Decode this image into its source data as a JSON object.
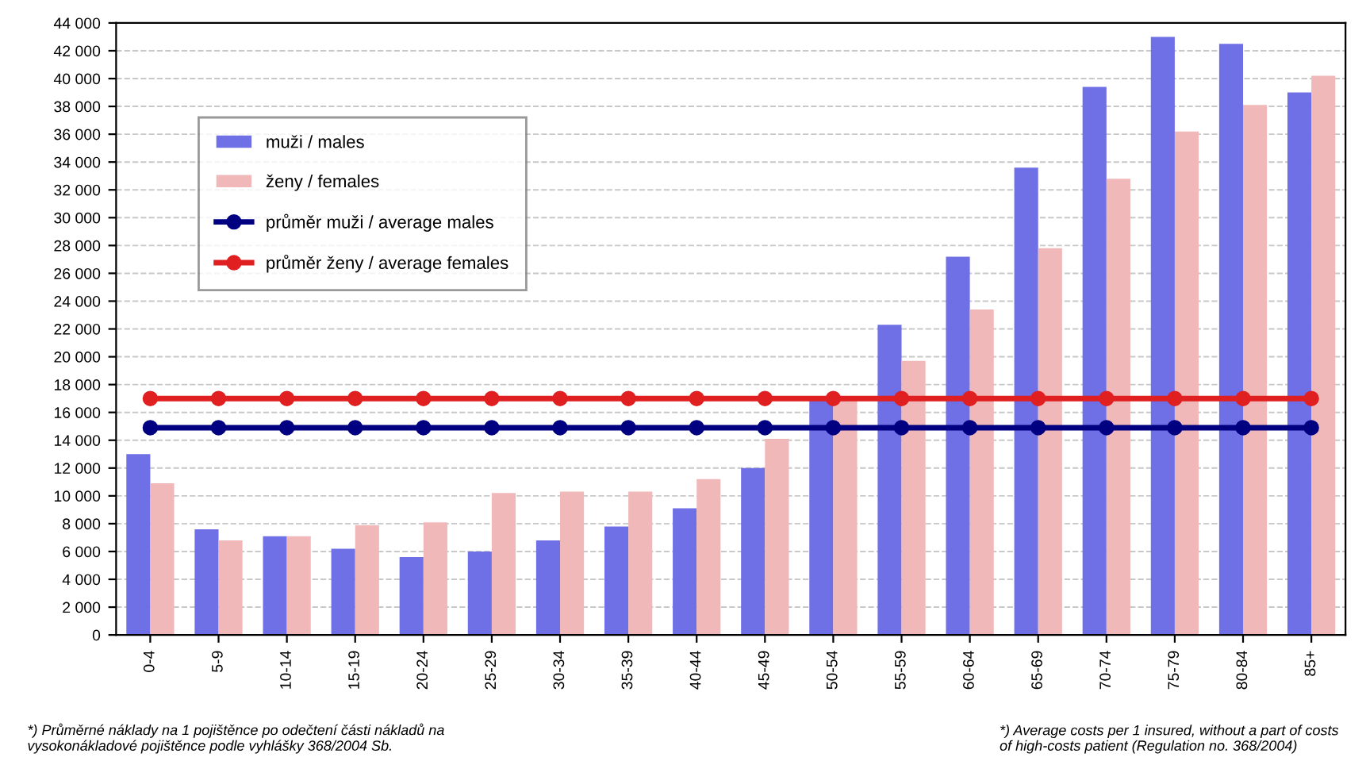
{
  "chart_data": {
    "type": "bar",
    "categories": [
      "0-4",
      "5-9",
      "10-14",
      "15-19",
      "20-24",
      "25-29",
      "30-34",
      "35-39",
      "40-44",
      "45-49",
      "50-54",
      "55-59",
      "60-64",
      "65-69",
      "70-74",
      "75-79",
      "80-84",
      "85+"
    ],
    "series": [
      {
        "name": "muži / males",
        "color": "#6f6fe6",
        "values": [
          13000,
          7600,
          7100,
          6200,
          5600,
          6000,
          6800,
          7800,
          9100,
          12000,
          17000,
          22300,
          27200,
          33600,
          39400,
          43000,
          42500,
          39000
        ]
      },
      {
        "name": "ženy / females",
        "color": "#f0b8b8",
        "values": [
          10900,
          6800,
          7100,
          7900,
          8100,
          10200,
          10300,
          10300,
          11200,
          14100,
          17100,
          19700,
          23400,
          27800,
          32800,
          36200,
          38100,
          40200
        ]
      },
      {
        "name": "průměr muži / average males",
        "type": "line",
        "color": "#000080",
        "values": [
          14900,
          14900,
          14900,
          14900,
          14900,
          14900,
          14900,
          14900,
          14900,
          14900,
          14900,
          14900,
          14900,
          14900,
          14900,
          14900,
          14900,
          14900
        ]
      },
      {
        "name": "průměr ženy / average females",
        "type": "line",
        "color": "#e02020",
        "values": [
          17000,
          17000,
          17000,
          17000,
          17000,
          17000,
          17000,
          17000,
          17000,
          17000,
          17000,
          17000,
          17000,
          17000,
          17000,
          17000,
          17000,
          17000
        ]
      }
    ],
    "ylim": [
      0,
      44000
    ],
    "yticks": [
      {
        "value": 0,
        "label": "0"
      },
      {
        "value": 2000,
        "label": "2 000"
      },
      {
        "value": 4000,
        "label": "4 000"
      },
      {
        "value": 6000,
        "label": "6 000"
      },
      {
        "value": 8000,
        "label": "8 000"
      },
      {
        "value": 10000,
        "label": "10 000"
      },
      {
        "value": 12000,
        "label": "12 000"
      },
      {
        "value": 14000,
        "label": "14 000"
      },
      {
        "value": 16000,
        "label": "16 000"
      },
      {
        "value": 18000,
        "label": "18 000"
      },
      {
        "value": 20000,
        "label": "20 000"
      },
      {
        "value": 22000,
        "label": "22 000"
      },
      {
        "value": 24000,
        "label": "24 000"
      },
      {
        "value": 26000,
        "label": "26 000"
      },
      {
        "value": 28000,
        "label": "28 000"
      },
      {
        "value": 30000,
        "label": "30 000"
      },
      {
        "value": 32000,
        "label": "32 000"
      },
      {
        "value": 34000,
        "label": "34 000"
      },
      {
        "value": 36000,
        "label": "36 000"
      },
      {
        "value": 38000,
        "label": "38 000"
      },
      {
        "value": 40000,
        "label": "40 000"
      },
      {
        "value": 42000,
        "label": "42 000"
      },
      {
        "value": 44000,
        "label": "44 000"
      }
    ],
    "grid": "y",
    "legend": "top left",
    "marker": "circle",
    "annotations": [
      "*) Průměrné náklady na 1 pojištěnce po odečtení části nákladů na\nvysokonákladové pojištěnce podle vyhlášky 368/2004 Sb.",
      "*) Average costs per 1 insured, without a part of costs\nof high-costs patient (Regulation no. 368/2004)"
    ]
  }
}
